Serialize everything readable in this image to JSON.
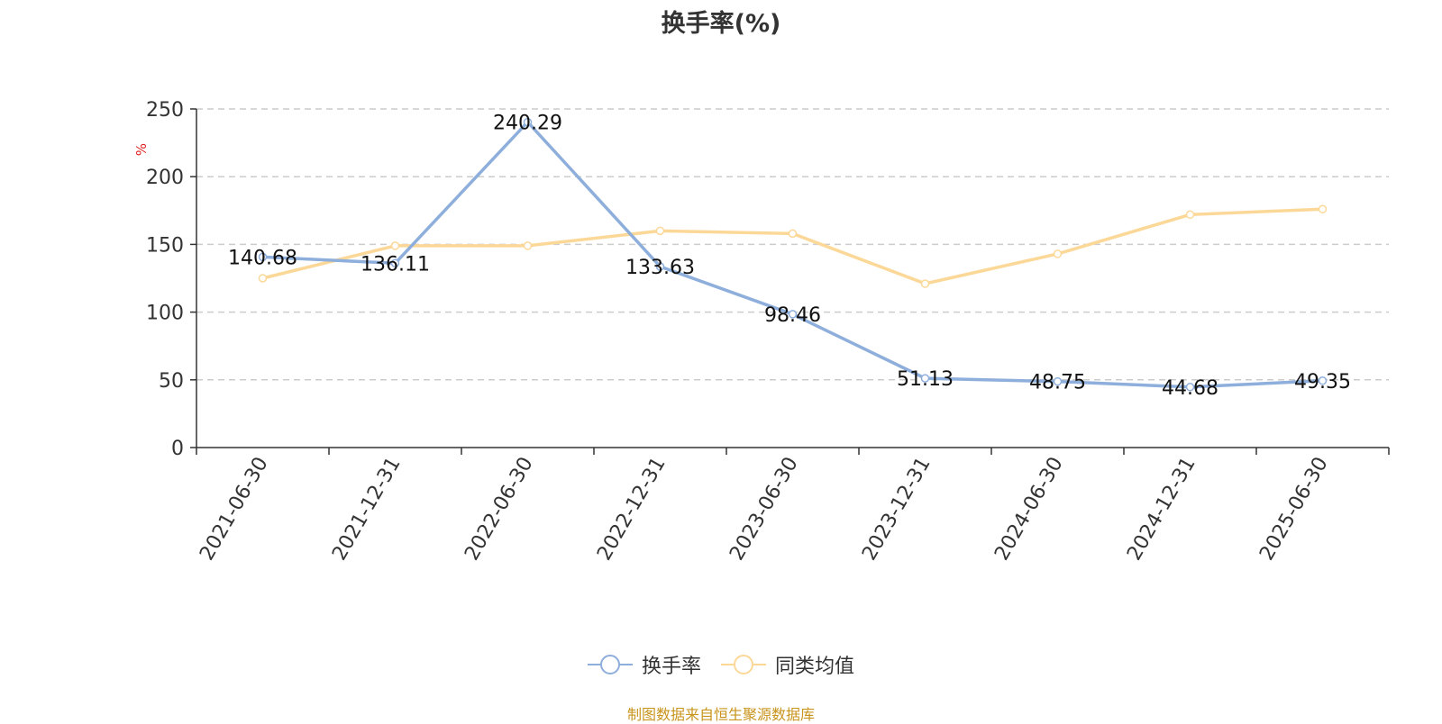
{
  "chart_data": {
    "type": "line",
    "title": "换手率(%)",
    "ylabel": "%",
    "ylim": [
      0,
      250
    ],
    "yticks": [
      0,
      50,
      100,
      150,
      200,
      250
    ],
    "grid": true,
    "legend_position": "bottom",
    "categories": [
      "2021-06-30",
      "2021-12-31",
      "2022-06-30",
      "2022-12-31",
      "2023-06-30",
      "2023-12-31",
      "2024-06-30",
      "2024-12-31",
      "2025-06-30"
    ],
    "series": [
      {
        "name": "换手率",
        "color": "#8eaedb",
        "values": [
          140.68,
          136.11,
          240.29,
          133.63,
          98.46,
          51.13,
          48.75,
          44.68,
          49.35
        ],
        "labels": [
          "140.68",
          "136.11",
          "240.29",
          "133.63",
          "98.46",
          "51.13",
          "48.75",
          "44.68",
          "49.35"
        ],
        "show_labels": true
      },
      {
        "name": "同类均值",
        "color": "#fcd898",
        "values": [
          125,
          149,
          149,
          160,
          158,
          121,
          143,
          172,
          176
        ],
        "show_labels": false
      }
    ]
  },
  "footer": "制图数据来自恒生聚源数据库"
}
